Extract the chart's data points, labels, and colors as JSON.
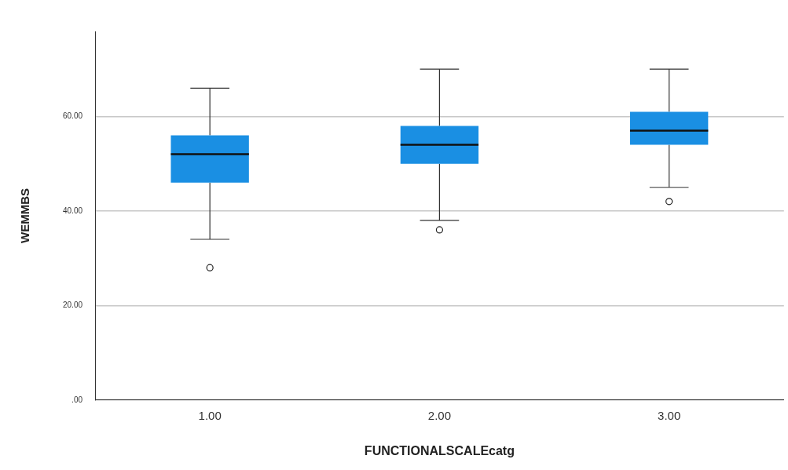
{
  "chart_data": {
    "type": "box",
    "xlabel": "FUNCTIONALSCALEcatg",
    "ylabel": "WEMMBS",
    "categories": [
      "1.00",
      "2.00",
      "3.00"
    ],
    "ylim": [
      0,
      78
    ],
    "yticks": [
      {
        "value": 0,
        "label": ".00"
      },
      {
        "value": 20,
        "label": "20.00"
      },
      {
        "value": 40,
        "label": "40.00"
      },
      {
        "value": 60,
        "label": "60.00"
      }
    ],
    "grid": "y",
    "marker": "circle",
    "legend": false,
    "series": [
      {
        "color": "#1a8fe3",
        "boxes": [
          {
            "low": 34,
            "q1": 46,
            "median": 52,
            "q3": 56,
            "high": 66,
            "outliers": [
              28
            ]
          },
          {
            "low": 38,
            "q1": 50,
            "median": 54,
            "q3": 58,
            "high": 70,
            "outliers": [
              36
            ]
          },
          {
            "low": 45,
            "q1": 54,
            "median": 57,
            "q3": 61,
            "high": 70,
            "outliers": [
              42
            ]
          }
        ]
      }
    ]
  }
}
